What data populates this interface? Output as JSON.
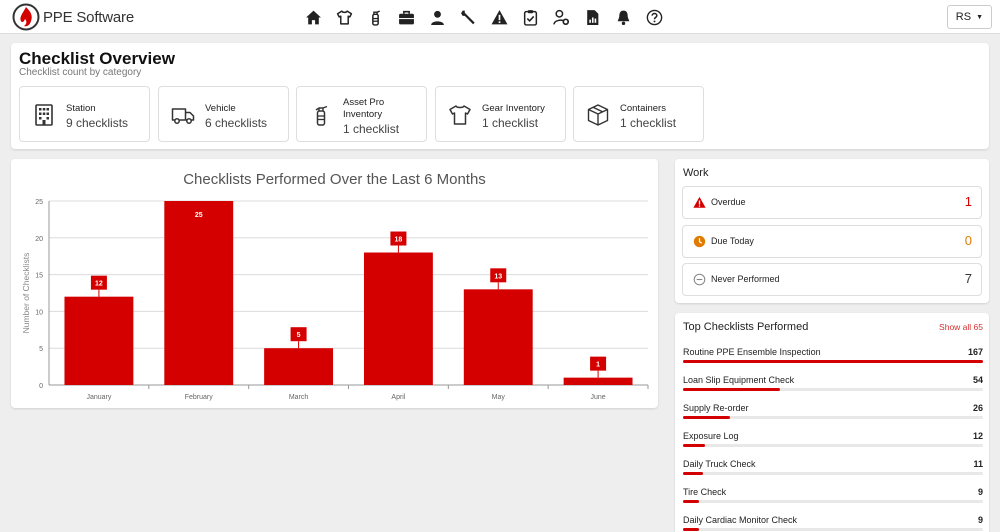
{
  "header": {
    "brand": "PPE Software",
    "nav_icons": [
      "home-icon",
      "shirt-icon",
      "extinguisher-icon",
      "briefcase-icon",
      "person-icon",
      "wrench-icon",
      "warning-icon",
      "clipboard-check-icon",
      "user-gear-icon",
      "report-icon",
      "bell-icon",
      "help-icon"
    ],
    "user_initials": "RS"
  },
  "overview": {
    "title": "Checklist Overview",
    "subtitle": "Checklist count by category",
    "categories": [
      {
        "name": "Station",
        "count": "9 checklists",
        "icon": "building-icon"
      },
      {
        "name": "Vehicle",
        "count": "6 checklists",
        "icon": "truck-icon"
      },
      {
        "name": "Asset Pro Inventory",
        "count": "1 checklist",
        "icon": "extinguisher-icon"
      },
      {
        "name": "Gear Inventory",
        "count": "1 checklist",
        "icon": "shirt-icon"
      },
      {
        "name": "Containers",
        "count": "1 checklist",
        "icon": "box-icon"
      }
    ]
  },
  "chart_data": {
    "type": "bar",
    "title": "Checklists Performed Over the Last 6 Months",
    "xlabel": "",
    "ylabel": "Number of Checklists",
    "categories": [
      "January",
      "February",
      "March",
      "April",
      "May",
      "June"
    ],
    "values": [
      12,
      25,
      5,
      18,
      13,
      1
    ],
    "yticks": [
      0,
      5,
      10,
      15,
      20,
      25
    ],
    "ylim": [
      0,
      25
    ],
    "bar_color": "#d40000",
    "grid": true,
    "legend": "none"
  },
  "work": {
    "title": "Work",
    "items": [
      {
        "label": "Overdue",
        "count": "1",
        "color": "#d40000",
        "icon": "warning-icon"
      },
      {
        "label": "Due Today",
        "count": "0",
        "color": "#e07b00",
        "icon": "clock-icon"
      },
      {
        "label": "Never Performed",
        "count": "7",
        "color": "#333333",
        "icon": "minus-circle-icon"
      }
    ]
  },
  "top_checklists": {
    "title": "Top Checklists Performed",
    "show_all": "Show all 65",
    "items": [
      {
        "label": "Routine PPE Ensemble Inspection",
        "value": "167",
        "fraction": 1.0
      },
      {
        "label": "Loan Slip Equipment Check",
        "value": "54",
        "fraction": 0.323
      },
      {
        "label": "Supply Re-order",
        "value": "26",
        "fraction": 0.156
      },
      {
        "label": "Exposure Log",
        "value": "12",
        "fraction": 0.072
      },
      {
        "label": "Daily Truck Check",
        "value": "11",
        "fraction": 0.066
      },
      {
        "label": "Tire Check",
        "value": "9",
        "fraction": 0.054
      },
      {
        "label": "Daily Cardiac Monitor Check",
        "value": "9",
        "fraction": 0.054
      }
    ]
  }
}
